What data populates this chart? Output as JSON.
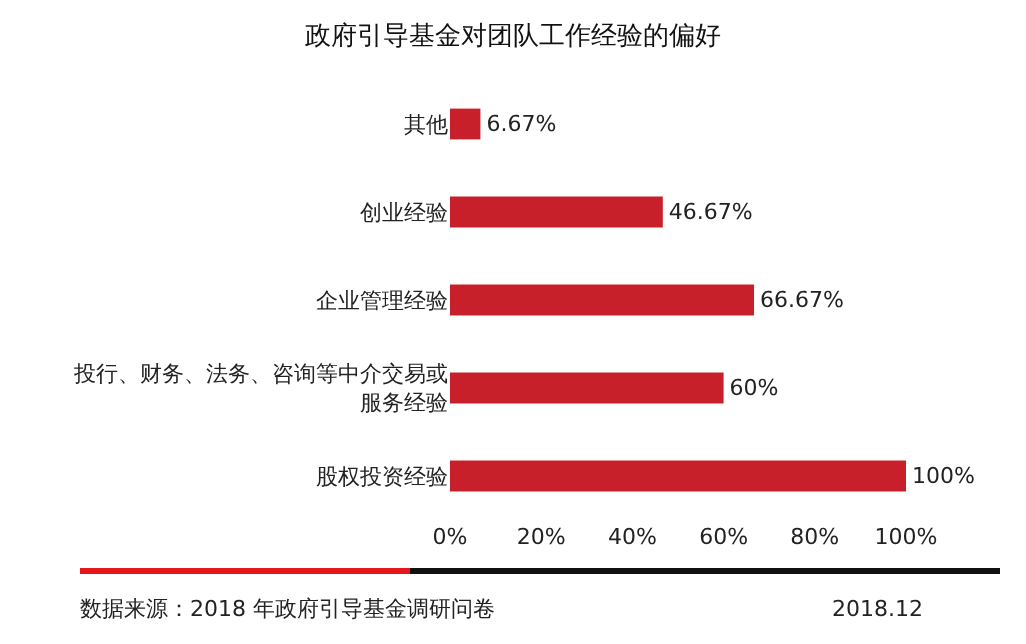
{
  "chart_data": {
    "type": "bar",
    "orientation": "horizontal",
    "title": "政府引导基金对团队工作经验的偏好",
    "categories": [
      "其他",
      "创业经验",
      "企业管理经验",
      "投行、财务、法务、咨询等中介交易或服务经验",
      "股权投资经验"
    ],
    "values": [
      6.67,
      46.67,
      66.67,
      60,
      100
    ],
    "value_labels": [
      "6.67%",
      "46.67%",
      "66.67%",
      "60%",
      "100%"
    ],
    "color": "#c8202a",
    "xlim": [
      0,
      100
    ],
    "xticks": [
      {
        "value": 0,
        "label": "0%"
      },
      {
        "value": 20,
        "label": "20%"
      },
      {
        "value": 40,
        "label": "40%"
      },
      {
        "value": 60,
        "label": "60%"
      },
      {
        "value": 80,
        "label": "80%"
      },
      {
        "value": 100,
        "label": "100%"
      }
    ],
    "grid": false,
    "legend": false,
    "annotations": [
      "数据来源：2018 年政府引导基金调研问卷",
      "2018.12"
    ]
  }
}
